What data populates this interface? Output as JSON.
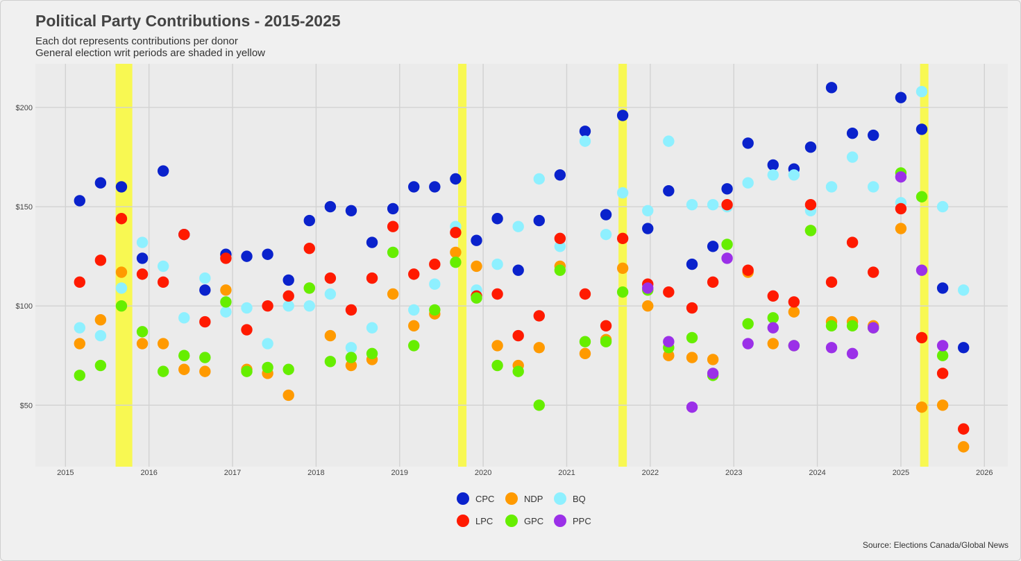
{
  "title": "Political Party Contributions - 2015-2025",
  "subtitle_line1": "Each dot represents contributions per donor",
  "subtitle_line2": "General election writ periods are shaded in yellow",
  "source": "Source: Elections Canada/Global News",
  "legend": [
    {
      "name": "CPC",
      "color": "#0a22cc"
    },
    {
      "name": "NDP",
      "color": "#ff9a00"
    },
    {
      "name": "BQ",
      "color": "#8ef0ff"
    },
    {
      "name": "LPC",
      "color": "#ff1a00"
    },
    {
      "name": "GPC",
      "color": "#66ee00"
    },
    {
      "name": "PPC",
      "color": "#9b30e8"
    }
  ],
  "chart_data": {
    "type": "scatter",
    "title": "Political Party Contributions - 2015-2025",
    "xlim": [
      2014.64,
      2026.28
    ],
    "ylim": [
      19,
      222
    ],
    "x_ticks": [
      "2015",
      "2016",
      "2017",
      "2018",
      "2019",
      "2020",
      "2021",
      "2022",
      "2023",
      "2024",
      "2025",
      "2026"
    ],
    "y_ticks": [
      "$50",
      "$100",
      "$150",
      "$200"
    ],
    "y_tick_values": [
      50,
      100,
      150,
      200
    ],
    "grid": true,
    "legend_position": "bottom",
    "shaded_periods": [
      [
        2015.6,
        2015.8
      ],
      [
        2019.7,
        2019.8
      ],
      [
        2021.62,
        2021.72
      ],
      [
        2025.23,
        2025.33
      ]
    ],
    "series": [
      {
        "name": "CPC",
        "color": "#0a22cc",
        "points": [
          [
            2015.17,
            153
          ],
          [
            2015.42,
            162
          ],
          [
            2015.67,
            160
          ],
          [
            2015.92,
            124
          ],
          [
            2016.17,
            168
          ],
          [
            2016.42,
            136
          ],
          [
            2016.67,
            108
          ],
          [
            2016.92,
            126
          ],
          [
            2017.17,
            125
          ],
          [
            2017.42,
            126
          ],
          [
            2017.67,
            113
          ],
          [
            2017.92,
            143
          ],
          [
            2018.17,
            150
          ],
          [
            2018.42,
            148
          ],
          [
            2018.67,
            132
          ],
          [
            2018.92,
            149
          ],
          [
            2019.17,
            160
          ],
          [
            2019.42,
            160
          ],
          [
            2019.67,
            164
          ],
          [
            2019.92,
            133
          ],
          [
            2020.17,
            144
          ],
          [
            2020.42,
            118
          ],
          [
            2020.67,
            143
          ],
          [
            2020.92,
            166
          ],
          [
            2021.22,
            188
          ],
          [
            2021.47,
            146
          ],
          [
            2021.67,
            196
          ],
          [
            2021.97,
            139
          ],
          [
            2022.22,
            158
          ],
          [
            2022.5,
            121
          ],
          [
            2022.75,
            130
          ],
          [
            2022.92,
            159
          ],
          [
            2023.17,
            182
          ],
          [
            2023.47,
            171
          ],
          [
            2023.72,
            169
          ],
          [
            2023.92,
            180
          ],
          [
            2024.17,
            210
          ],
          [
            2024.42,
            187
          ],
          [
            2024.67,
            186
          ],
          [
            2025,
            205
          ],
          [
            2025.25,
            189
          ],
          [
            2025.5,
            109
          ],
          [
            2025.75,
            79
          ]
        ]
      },
      {
        "name": "NDP",
        "color": "#ff9a00",
        "points": [
          [
            2015.17,
            81
          ],
          [
            2015.42,
            93
          ],
          [
            2015.67,
            117
          ],
          [
            2015.92,
            81
          ],
          [
            2016.17,
            81
          ],
          [
            2016.42,
            68
          ],
          [
            2016.67,
            67
          ],
          [
            2016.92,
            108
          ],
          [
            2017.17,
            68
          ],
          [
            2017.42,
            66
          ],
          [
            2017.67,
            55
          ],
          [
            2017.92,
            109
          ],
          [
            2018.17,
            85
          ],
          [
            2018.42,
            70
          ],
          [
            2018.67,
            73
          ],
          [
            2018.92,
            106
          ],
          [
            2019.17,
            90
          ],
          [
            2019.42,
            96
          ],
          [
            2019.67,
            127
          ],
          [
            2019.92,
            120
          ],
          [
            2020.17,
            80
          ],
          [
            2020.42,
            70
          ],
          [
            2020.67,
            79
          ],
          [
            2020.92,
            120
          ],
          [
            2021.22,
            76
          ],
          [
            2021.47,
            83
          ],
          [
            2021.67,
            119
          ],
          [
            2021.97,
            100
          ],
          [
            2022.22,
            75
          ],
          [
            2022.5,
            74
          ],
          [
            2022.75,
            73
          ],
          [
            2023.17,
            117
          ],
          [
            2023.47,
            81
          ],
          [
            2023.72,
            97
          ],
          [
            2023.92,
            138
          ],
          [
            2024.17,
            92
          ],
          [
            2024.42,
            92
          ],
          [
            2024.67,
            90
          ],
          [
            2025,
            139
          ],
          [
            2025.25,
            49
          ],
          [
            2025.5,
            50
          ],
          [
            2025.75,
            29
          ]
        ]
      },
      {
        "name": "BQ",
        "color": "#8ef0ff",
        "points": [
          [
            2015.17,
            89
          ],
          [
            2015.42,
            85
          ],
          [
            2015.67,
            109
          ],
          [
            2015.92,
            132
          ],
          [
            2016.17,
            120
          ],
          [
            2016.42,
            94
          ],
          [
            2016.67,
            114
          ],
          [
            2016.92,
            97
          ],
          [
            2017.17,
            99
          ],
          [
            2017.42,
            81
          ],
          [
            2017.67,
            100
          ],
          [
            2017.92,
            100
          ],
          [
            2018.17,
            106
          ],
          [
            2018.42,
            79
          ],
          [
            2018.67,
            89
          ],
          [
            2018.92,
            127
          ],
          [
            2019.17,
            98
          ],
          [
            2019.42,
            111
          ],
          [
            2019.67,
            140
          ],
          [
            2019.92,
            108
          ],
          [
            2020.17,
            121
          ],
          [
            2020.42,
            140
          ],
          [
            2020.67,
            164
          ],
          [
            2020.92,
            130
          ],
          [
            2021.22,
            183
          ],
          [
            2021.47,
            136
          ],
          [
            2021.67,
            157
          ],
          [
            2021.97,
            148
          ],
          [
            2022.22,
            183
          ],
          [
            2022.5,
            151
          ],
          [
            2022.75,
            151
          ],
          [
            2022.92,
            150
          ],
          [
            2023.17,
            162
          ],
          [
            2023.47,
            166
          ],
          [
            2023.72,
            166
          ],
          [
            2023.92,
            148
          ],
          [
            2024.17,
            160
          ],
          [
            2024.42,
            175
          ],
          [
            2024.67,
            160
          ],
          [
            2025,
            152
          ],
          [
            2025.25,
            208
          ],
          [
            2025.5,
            150
          ],
          [
            2025.75,
            108
          ]
        ]
      },
      {
        "name": "LPC",
        "color": "#ff1a00",
        "points": [
          [
            2015.17,
            112
          ],
          [
            2015.42,
            123
          ],
          [
            2015.67,
            144
          ],
          [
            2015.92,
            116
          ],
          [
            2016.17,
            112
          ],
          [
            2016.42,
            136
          ],
          [
            2016.67,
            92
          ],
          [
            2016.92,
            124
          ],
          [
            2017.17,
            88
          ],
          [
            2017.42,
            100
          ],
          [
            2017.67,
            105
          ],
          [
            2017.92,
            129
          ],
          [
            2018.17,
            114
          ],
          [
            2018.42,
            98
          ],
          [
            2018.67,
            114
          ],
          [
            2018.92,
            140
          ],
          [
            2019.17,
            116
          ],
          [
            2019.42,
            121
          ],
          [
            2019.67,
            137
          ],
          [
            2019.92,
            105
          ],
          [
            2020.17,
            106
          ],
          [
            2020.42,
            85
          ],
          [
            2020.67,
            95
          ],
          [
            2020.92,
            134
          ],
          [
            2021.22,
            106
          ],
          [
            2021.47,
            90
          ],
          [
            2021.67,
            134
          ],
          [
            2021.97,
            111
          ],
          [
            2022.22,
            107
          ],
          [
            2022.5,
            99
          ],
          [
            2022.75,
            112
          ],
          [
            2022.92,
            151
          ],
          [
            2023.17,
            118
          ],
          [
            2023.47,
            105
          ],
          [
            2023.72,
            102
          ],
          [
            2023.92,
            151
          ],
          [
            2024.17,
            112
          ],
          [
            2024.42,
            132
          ],
          [
            2024.67,
            117
          ],
          [
            2025,
            149
          ],
          [
            2025.25,
            84
          ],
          [
            2025.5,
            66
          ],
          [
            2025.75,
            38
          ]
        ]
      },
      {
        "name": "GPC",
        "color": "#66ee00",
        "points": [
          [
            2015.17,
            65
          ],
          [
            2015.42,
            70
          ],
          [
            2015.67,
            100
          ],
          [
            2015.92,
            87
          ],
          [
            2016.17,
            67
          ],
          [
            2016.42,
            75
          ],
          [
            2016.67,
            74
          ],
          [
            2016.92,
            102
          ],
          [
            2017.17,
            67
          ],
          [
            2017.42,
            69
          ],
          [
            2017.67,
            68
          ],
          [
            2017.92,
            109
          ],
          [
            2018.17,
            72
          ],
          [
            2018.42,
            74
          ],
          [
            2018.67,
            76
          ],
          [
            2018.92,
            127
          ],
          [
            2019.17,
            80
          ],
          [
            2019.42,
            98
          ],
          [
            2019.67,
            122
          ],
          [
            2019.92,
            104
          ],
          [
            2020.17,
            70
          ],
          [
            2020.42,
            67
          ],
          [
            2020.67,
            50
          ],
          [
            2020.92,
            118
          ],
          [
            2021.22,
            82
          ],
          [
            2021.47,
            82
          ],
          [
            2021.67,
            107
          ],
          [
            2021.97,
            108
          ],
          [
            2022.22,
            79
          ],
          [
            2022.5,
            84
          ],
          [
            2022.75,
            65
          ],
          [
            2022.92,
            131
          ],
          [
            2023.17,
            91
          ],
          [
            2023.47,
            94
          ],
          [
            2023.72,
            80
          ],
          [
            2023.92,
            138
          ],
          [
            2024.17,
            90
          ],
          [
            2024.42,
            90
          ],
          [
            2024.67,
            89
          ],
          [
            2025,
            167
          ],
          [
            2025.25,
            155
          ],
          [
            2025.5,
            75
          ]
        ]
      },
      {
        "name": "PPC",
        "color": "#9b30e8",
        "points": [
          [
            2021.97,
            109
          ],
          [
            2022.22,
            82
          ],
          [
            2022.5,
            49
          ],
          [
            2022.75,
            66
          ],
          [
            2022.92,
            124
          ],
          [
            2023.17,
            81
          ],
          [
            2023.47,
            89
          ],
          [
            2023.72,
            80
          ],
          [
            2024.17,
            79
          ],
          [
            2024.42,
            76
          ],
          [
            2024.67,
            89
          ],
          [
            2025,
            165
          ],
          [
            2025.25,
            118
          ],
          [
            2025.5,
            80
          ]
        ]
      }
    ]
  }
}
